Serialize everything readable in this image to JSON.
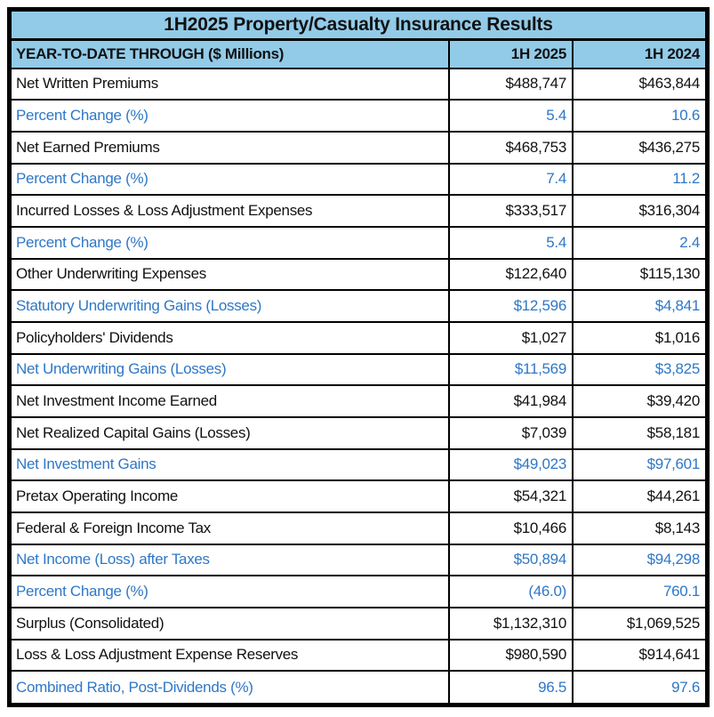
{
  "colors": {
    "header_bg": "#92CBE8",
    "accent_blue": "#2E77C6",
    "text_black": "#111111",
    "border": "#000000",
    "page_bg": "#FFFFFF"
  },
  "chart_data": {
    "type": "table",
    "title": "1H2025 Property/Casualty Insurance Results",
    "columns": [
      "YEAR-TO-DATE THROUGH ($ Millions)",
      "1H 2025",
      "1H 2024"
    ],
    "layout": {
      "grid": "black 2px inner lines, 5px outer border",
      "header_style": "light blue fill, bold",
      "accent_rows_color": "#2E77C6"
    },
    "rows": [
      {
        "label": "Net Written Premiums",
        "h1_2025": "$488,747",
        "h1_2024": "$463,844",
        "accent": false
      },
      {
        "label": "Percent Change (%)",
        "h1_2025": "5.4",
        "h1_2024": "10.6",
        "accent": true
      },
      {
        "label": "Net Earned Premiums",
        "h1_2025": "$468,753",
        "h1_2024": "$436,275",
        "accent": false
      },
      {
        "label": "Percent Change (%)",
        "h1_2025": "7.4",
        "h1_2024": "11.2",
        "accent": true
      },
      {
        "label": "Incurred Losses & Loss Adjustment Expenses",
        "h1_2025": "$333,517",
        "h1_2024": "$316,304",
        "accent": false
      },
      {
        "label": "Percent Change (%)",
        "h1_2025": "5.4",
        "h1_2024": "2.4",
        "accent": true
      },
      {
        "label": "Other Underwriting Expenses",
        "h1_2025": "$122,640",
        "h1_2024": "$115,130",
        "accent": false
      },
      {
        "label": "Statutory Underwriting Gains (Losses)",
        "h1_2025": "$12,596",
        "h1_2024": "$4,841",
        "accent": true
      },
      {
        "label": "Policyholders' Dividends",
        "h1_2025": "$1,027",
        "h1_2024": "$1,016",
        "accent": false
      },
      {
        "label": "Net Underwriting Gains (Losses)",
        "h1_2025": "$11,569",
        "h1_2024": "$3,825",
        "accent": true
      },
      {
        "label": "Net Investment Income Earned",
        "h1_2025": "$41,984",
        "h1_2024": "$39,420",
        "accent": false
      },
      {
        "label": "Net Realized Capital Gains (Losses)",
        "h1_2025": "$7,039",
        "h1_2024": "$58,181",
        "accent": false
      },
      {
        "label": "Net Investment Gains",
        "h1_2025": "$49,023",
        "h1_2024": "$97,601",
        "accent": true
      },
      {
        "label": "Pretax Operating Income",
        "h1_2025": "$54,321",
        "h1_2024": "$44,261",
        "accent": false
      },
      {
        "label": "Federal & Foreign Income Tax",
        "h1_2025": "$10,466",
        "h1_2024": "$8,143",
        "accent": false
      },
      {
        "label": "Net Income (Loss) after Taxes",
        "h1_2025": "$50,894",
        "h1_2024": "$94,298",
        "accent": true
      },
      {
        "label": "Percent Change (%)",
        "h1_2025": "(46.0)",
        "h1_2024": "760.1",
        "accent": true
      },
      {
        "label": "Surplus (Consolidated)",
        "h1_2025": "$1,132,310",
        "h1_2024": "$1,069,525",
        "accent": false
      },
      {
        "label": "Loss & Loss Adjustment Expense Reserves",
        "h1_2025": "$980,590",
        "h1_2024": "$914,641",
        "accent": false
      },
      {
        "label": "Combined Ratio, Post-Dividends (%)",
        "h1_2025": "96.5",
        "h1_2024": "97.6",
        "accent": true
      }
    ]
  }
}
